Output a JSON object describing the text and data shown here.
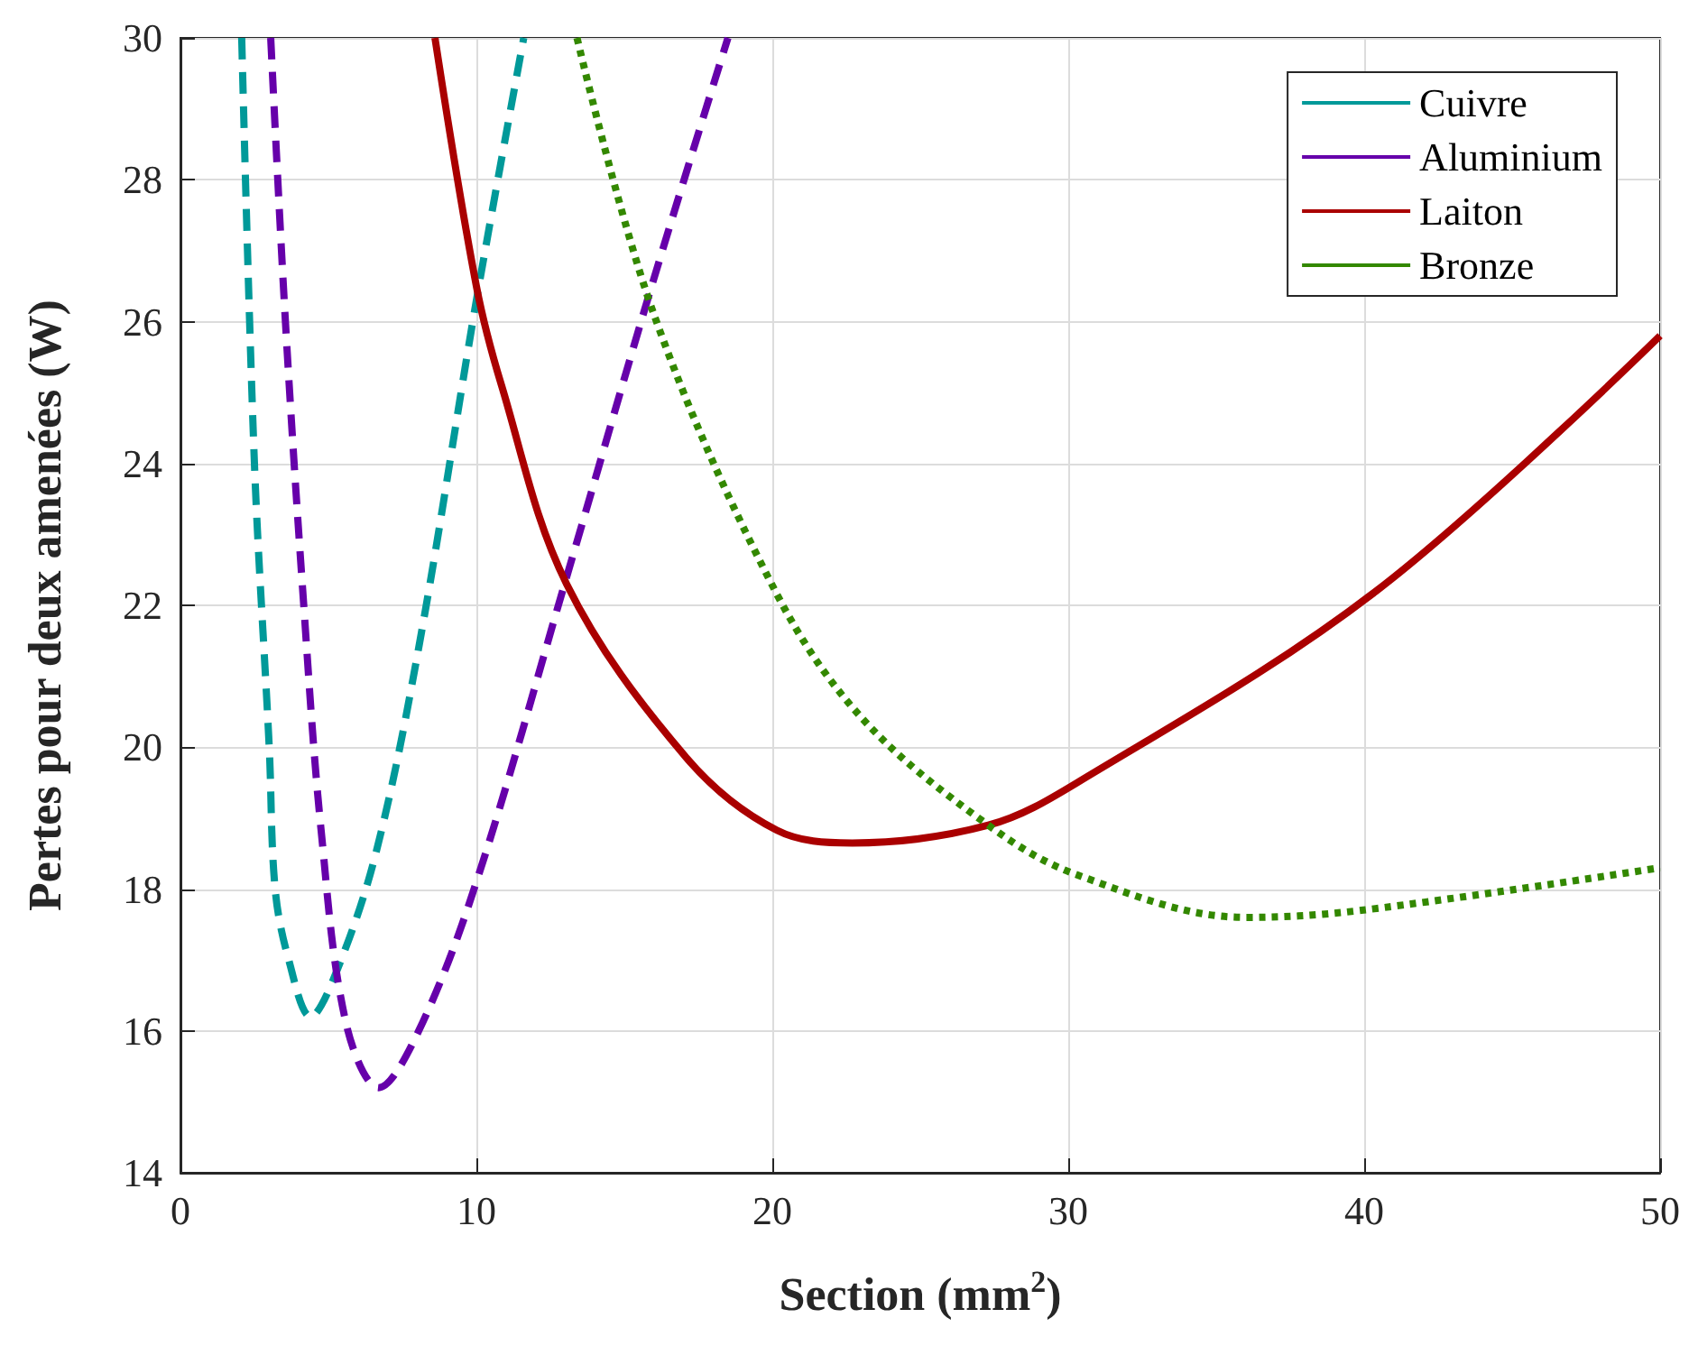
{
  "chart_data": {
    "type": "line",
    "xlabel": "Section (mm$^{2}$)",
    "ylabel": "Pertes pour deux amenées (W)",
    "xlim": [
      0,
      50
    ],
    "xticks": [
      0,
      10,
      20,
      30,
      40,
      50
    ],
    "ylim": [
      14,
      30
    ],
    "yticks": [
      14,
      16,
      18,
      20,
      22,
      24,
      26,
      28,
      30
    ],
    "grid": true,
    "legend": "top right",
    "marker": "none",
    "series": [
      {
        "name": "Cuivre",
        "color": "#009999",
        "line_style": "dashed",
        "x": [
          2.07,
          2.5,
          3.0,
          3.2,
          3.66,
          4.4,
          5.24,
          6.6,
          8.05,
          10.0,
          11.6
        ],
        "values": [
          30,
          24.0,
          20.0,
          18.0,
          17.0,
          16.2,
          16.8,
          18.5,
          21.4,
          26.3,
          30
        ]
      },
      {
        "name": "Aluminium",
        "color": "#6600aa",
        "line_style": "dashed",
        "x": [
          3.05,
          3.54,
          4.15,
          4.76,
          5.6,
          6.7,
          8.05,
          10.0,
          13.05,
          15.85,
          18.5
        ],
        "values": [
          30,
          26.05,
          22.1,
          18.8,
          16.1,
          15.2,
          16.0,
          18.1,
          22.4,
          26.4,
          30
        ]
      },
      {
        "name": "Laiton",
        "color": "#aa0000",
        "line_style": "solid",
        "x": [
          8.6,
          10.0,
          10.85,
          13.05,
          17.1,
          20.15,
          22.7,
          27.3,
          30.3,
          40.4,
          50
        ],
        "values": [
          30,
          26.5,
          25.1,
          22.3,
          19.85,
          18.83,
          18.65,
          18.9,
          19.5,
          22.2,
          25.8
        ]
      },
      {
        "name": "Bronze",
        "color": "#338800",
        "line_style": "dotted",
        "x": [
          13.4,
          16.0,
          20.1,
          23.05,
          27.3,
          30.3,
          36.0,
          39.9,
          50
        ],
        "values": [
          30,
          26.1,
          22.2,
          20.4,
          18.9,
          18.2,
          17.6,
          17.7,
          18.3
        ]
      }
    ]
  }
}
